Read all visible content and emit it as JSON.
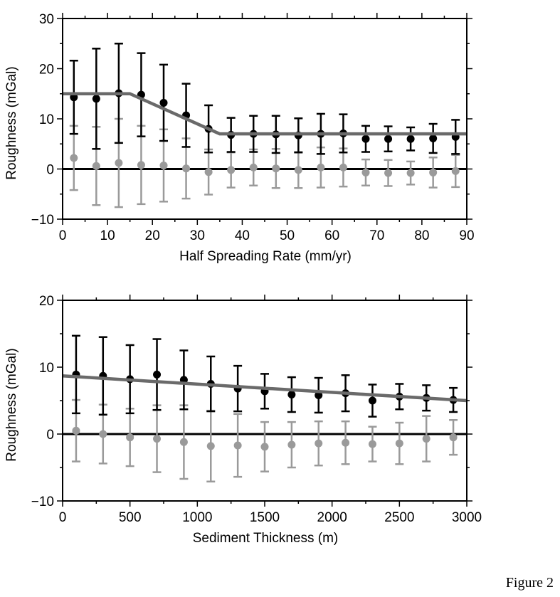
{
  "figure_label": "Figure 2",
  "chart_data": [
    {
      "type": "scatter",
      "xlabel": "Half Spreading Rate (mm/yr)",
      "ylabel": "Roughness (mGal)",
      "xlim": [
        0,
        90
      ],
      "ylim": [
        -10,
        30
      ],
      "xticks": [
        0,
        10,
        20,
        30,
        40,
        50,
        60,
        70,
        80,
        90
      ],
      "yticks": [
        -10,
        0,
        10,
        20,
        30
      ],
      "series": [
        {
          "color": "#000000",
          "points": [
            {
              "x": 2.5,
              "y": 14.3,
              "err": 7.3
            },
            {
              "x": 7.5,
              "y": 14.0,
              "err": 10.0
            },
            {
              "x": 12.5,
              "y": 15.1,
              "err": 9.9
            },
            {
              "x": 17.5,
              "y": 14.8,
              "err": 8.3
            },
            {
              "x": 22.5,
              "y": 13.2,
              "err": 7.6
            },
            {
              "x": 27.5,
              "y": 10.7,
              "err": 6.3
            },
            {
              "x": 32.5,
              "y": 8.0,
              "err": 4.7
            },
            {
              "x": 37.5,
              "y": 6.8,
              "err": 3.4
            },
            {
              "x": 42.5,
              "y": 7.0,
              "err": 3.6
            },
            {
              "x": 47.5,
              "y": 6.9,
              "err": 3.7
            },
            {
              "x": 52.5,
              "y": 6.7,
              "err": 3.4
            },
            {
              "x": 57.5,
              "y": 7.0,
              "err": 4.0
            },
            {
              "x": 62.5,
              "y": 7.1,
              "err": 3.8
            },
            {
              "x": 67.5,
              "y": 6.0,
              "err": 2.6
            },
            {
              "x": 72.5,
              "y": 6.0,
              "err": 2.5
            },
            {
              "x": 77.5,
              "y": 6.0,
              "err": 2.3
            },
            {
              "x": 82.5,
              "y": 6.1,
              "err": 2.9
            },
            {
              "x": 87.5,
              "y": 6.4,
              "err": 3.4
            }
          ]
        },
        {
          "color": "#9a9a9a",
          "points": [
            {
              "x": 2.5,
              "y": 2.2,
              "err": 6.4
            },
            {
              "x": 7.5,
              "y": 0.6,
              "err": 7.8
            },
            {
              "x": 12.5,
              "y": 1.2,
              "err": 8.8
            },
            {
              "x": 17.5,
              "y": 0.8,
              "err": 7.8
            },
            {
              "x": 22.5,
              "y": 0.7,
              "err": 7.2
            },
            {
              "x": 27.5,
              "y": 0.1,
              "err": 6.0
            },
            {
              "x": 32.5,
              "y": -0.6,
              "err": 4.5
            },
            {
              "x": 37.5,
              "y": -0.2,
              "err": 3.5
            },
            {
              "x": 42.5,
              "y": 0.3,
              "err": 3.6
            },
            {
              "x": 47.5,
              "y": 0.1,
              "err": 3.9
            },
            {
              "x": 52.5,
              "y": -0.2,
              "err": 3.6
            },
            {
              "x": 57.5,
              "y": 0.3,
              "err": 4.0
            },
            {
              "x": 62.5,
              "y": 0.3,
              "err": 3.8
            },
            {
              "x": 67.5,
              "y": -0.7,
              "err": 2.6
            },
            {
              "x": 72.5,
              "y": -0.8,
              "err": 2.6
            },
            {
              "x": 77.5,
              "y": -0.8,
              "err": 2.3
            },
            {
              "x": 82.5,
              "y": -0.7,
              "err": 3.0
            },
            {
              "x": 87.5,
              "y": -0.4,
              "err": 3.2
            }
          ]
        }
      ],
      "fit_line": {
        "color": "#6a6a6a",
        "points": [
          [
            0,
            15
          ],
          [
            15,
            15
          ],
          [
            35,
            7
          ],
          [
            90,
            7
          ]
        ]
      },
      "reference_line_y": 0
    },
    {
      "type": "scatter",
      "xlabel": "Sediment Thickness (m)",
      "ylabel": "Roughness (mGal)",
      "xlim": [
        0,
        3000
      ],
      "ylim": [
        -10,
        20
      ],
      "xticks": [
        0,
        500,
        1000,
        1500,
        2000,
        2500,
        3000
      ],
      "yticks": [
        -10,
        0,
        10,
        20
      ],
      "series": [
        {
          "color": "#000000",
          "points": [
            {
              "x": 100,
              "y": 8.9,
              "err": 5.8
            },
            {
              "x": 300,
              "y": 8.7,
              "err": 5.8
            },
            {
              "x": 500,
              "y": 8.2,
              "err": 5.1
            },
            {
              "x": 700,
              "y": 8.9,
              "err": 5.3
            },
            {
              "x": 900,
              "y": 8.1,
              "err": 4.4
            },
            {
              "x": 1100,
              "y": 7.5,
              "err": 4.1
            },
            {
              "x": 1300,
              "y": 6.8,
              "err": 3.4
            },
            {
              "x": 1500,
              "y": 6.4,
              "err": 2.6
            },
            {
              "x": 1700,
              "y": 5.9,
              "err": 2.6
            },
            {
              "x": 1900,
              "y": 5.8,
              "err": 2.6
            },
            {
              "x": 2100,
              "y": 6.1,
              "err": 2.7
            },
            {
              "x": 2300,
              "y": 5.0,
              "err": 2.4
            },
            {
              "x": 2500,
              "y": 5.6,
              "err": 1.9
            },
            {
              "x": 2700,
              "y": 5.4,
              "err": 1.9
            },
            {
              "x": 2900,
              "y": 5.1,
              "err": 1.8
            }
          ]
        },
        {
          "color": "#9a9a9a",
          "points": [
            {
              "x": 100,
              "y": 0.5,
              "err": 4.6
            },
            {
              "x": 300,
              "y": 0.0,
              "err": 4.4
            },
            {
              "x": 500,
              "y": -0.5,
              "err": 4.3
            },
            {
              "x": 700,
              "y": -0.7,
              "err": 5.0
            },
            {
              "x": 900,
              "y": -1.2,
              "err": 5.5
            },
            {
              "x": 1100,
              "y": -1.8,
              "err": 5.3
            },
            {
              "x": 1300,
              "y": -1.7,
              "err": 4.7
            },
            {
              "x": 1500,
              "y": -1.9,
              "err": 3.7
            },
            {
              "x": 1700,
              "y": -1.6,
              "err": 3.4
            },
            {
              "x": 1900,
              "y": -1.4,
              "err": 3.3
            },
            {
              "x": 2100,
              "y": -1.3,
              "err": 3.2
            },
            {
              "x": 2300,
              "y": -1.5,
              "err": 2.6
            },
            {
              "x": 2500,
              "y": -1.4,
              "err": 3.1
            },
            {
              "x": 2700,
              "y": -0.7,
              "err": 3.4
            },
            {
              "x": 2900,
              "y": -0.5,
              "err": 2.6
            }
          ]
        }
      ],
      "fit_line": {
        "color": "#6a6a6a",
        "points": [
          [
            0,
            8.7
          ],
          [
            3000,
            5.0
          ]
        ]
      },
      "reference_line_y": 0
    }
  ]
}
